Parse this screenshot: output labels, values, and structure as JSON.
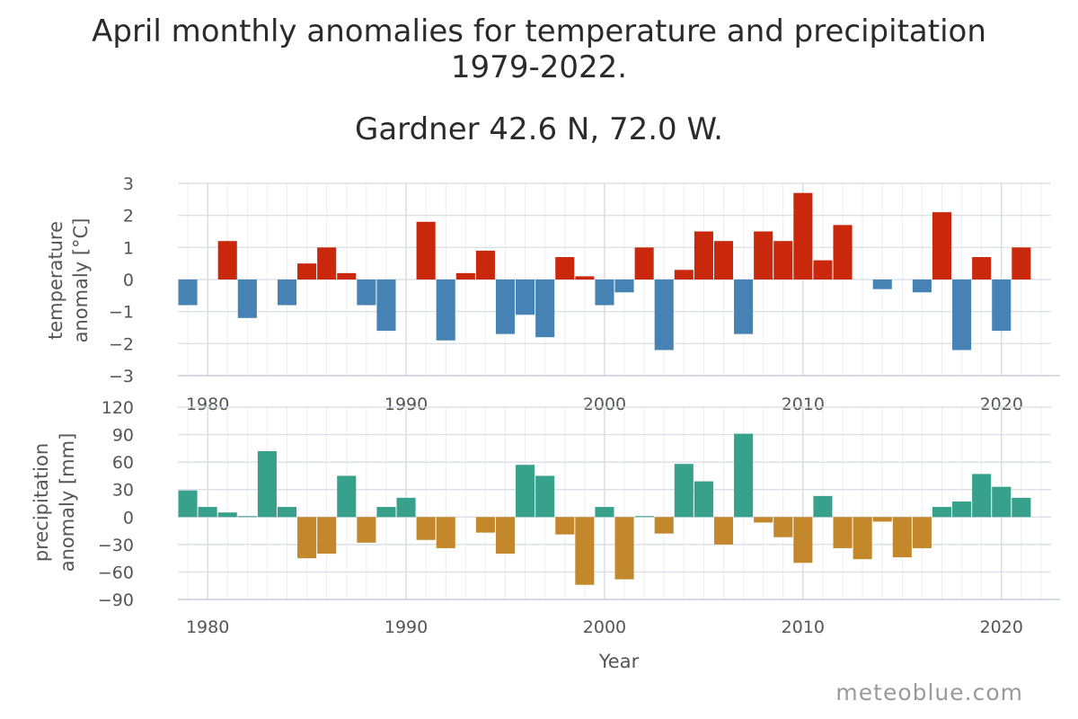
{
  "title_line1": "April monthly anomalies for temperature and precipitation",
  "title_line2": "1979-2022.",
  "subtitle": "Gardner 42.6 N, 72.0 W.",
  "credit": "meteoblue.com",
  "chart_data": [
    {
      "type": "bar",
      "panel": "temperature",
      "ylabel": [
        "temperature",
        "anomaly [°C]"
      ],
      "ylim": [
        -3,
        3
      ],
      "yticks": [
        3,
        2,
        1,
        0,
        -1,
        -2,
        -3
      ],
      "xticks": [
        1980,
        1990,
        2000,
        2010,
        2020
      ],
      "xlim": [
        1978.5,
        2022.5
      ],
      "grid": true,
      "positive_color": "#c9280d",
      "negative_color": "#4682b4",
      "x": [
        1979,
        1980,
        1981,
        1982,
        1983,
        1984,
        1985,
        1986,
        1987,
        1988,
        1989,
        1990,
        1991,
        1992,
        1993,
        1994,
        1995,
        1996,
        1997,
        1998,
        1999,
        2000,
        2001,
        2002,
        2003,
        2004,
        2005,
        2006,
        2007,
        2008,
        2009,
        2010,
        2011,
        2012,
        2013,
        2014,
        2015,
        2016,
        2017,
        2018,
        2019,
        2020,
        2021
      ],
      "values": [
        -0.8,
        0,
        1.2,
        -1.2,
        0,
        -0.8,
        0.5,
        1.0,
        0.2,
        -0.8,
        -1.6,
        0,
        1.8,
        -1.9,
        0.2,
        0.9,
        -1.7,
        -1.1,
        -1.8,
        0.7,
        0.1,
        -0.8,
        -0.4,
        1.0,
        -2.2,
        0.3,
        1.5,
        1.2,
        -1.7,
        1.5,
        1.2,
        2.7,
        0.6,
        1.7,
        0,
        -0.3,
        0,
        -0.4,
        2.1,
        -2.2,
        0.7,
        -1.6,
        1.0
      ]
    },
    {
      "type": "bar",
      "panel": "precipitation",
      "xlabel": "Year",
      "ylabel": [
        "precipitation",
        "anomaly [mm]"
      ],
      "ylim": [
        -90,
        120
      ],
      "yticks": [
        120,
        90,
        60,
        30,
        0,
        -30,
        -60,
        -90
      ],
      "xticks": [
        1980,
        1990,
        2000,
        2010,
        2020
      ],
      "xlim": [
        1978.5,
        2022.5
      ],
      "grid": true,
      "positive_color": "#38a18c",
      "negative_color": "#c2882b",
      "x": [
        1979,
        1980,
        1981,
        1982,
        1983,
        1984,
        1985,
        1986,
        1987,
        1988,
        1989,
        1990,
        1991,
        1992,
        1993,
        1994,
        1995,
        1996,
        1997,
        1998,
        1999,
        2000,
        2001,
        2002,
        2003,
        2004,
        2005,
        2006,
        2007,
        2008,
        2009,
        2010,
        2011,
        2012,
        2013,
        2014,
        2015,
        2016,
        2017,
        2018,
        2019,
        2020,
        2021
      ],
      "values": [
        29,
        11,
        5,
        1,
        72,
        11,
        -45,
        -40,
        45,
        -28,
        11,
        21,
        -25,
        -34,
        0,
        -17,
        -40,
        57,
        45,
        -19,
        -74,
        11,
        -68,
        1,
        -18,
        58,
        39,
        -30,
        91,
        -6,
        -22,
        -50,
        23,
        -34,
        -46,
        -5,
        -44,
        -34,
        11,
        17,
        47,
        33,
        21
      ]
    }
  ]
}
